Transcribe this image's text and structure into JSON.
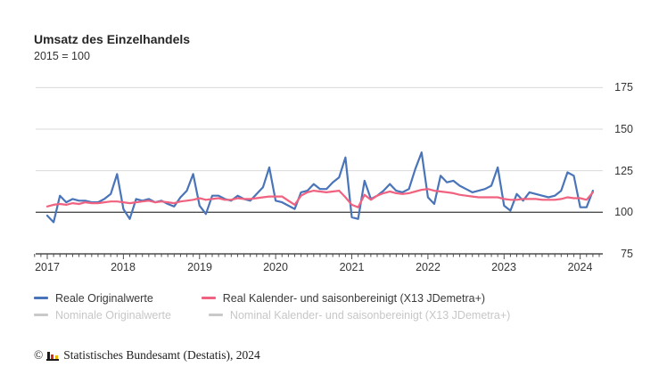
{
  "header": {
    "title": "Umsatz des Einzelhandels",
    "subtitle": "2015 = 100"
  },
  "y_axis": {
    "labels": [
      "175",
      "150",
      "125",
      "100",
      "75"
    ]
  },
  "x_axis": {
    "labels": [
      "2017",
      "2018",
      "2019",
      "2020",
      "2021",
      "2022",
      "2023",
      "2024"
    ]
  },
  "legend": {
    "active": [
      {
        "label": "Reale Originalwerte",
        "color": "#4a74b9"
      },
      {
        "label": "Real Kalender- und saisonbereinigt (X13 JDemetra+)",
        "color": "#f0627f"
      }
    ],
    "inactive": [
      {
        "label": "Nominale Originalwerte",
        "color": "#c9c9c9"
      },
      {
        "label": "Nominal Kalender- und saisonbereinigt (X13 JDemetra+)",
        "color": "#c9c9c9"
      }
    ]
  },
  "footer": {
    "copyright_symbol": "©",
    "logo_icon": "destatis-bar-chart-logo",
    "text": "Statistisches Bundesamt (Destatis), 2024"
  },
  "chart_data": {
    "type": "line",
    "title": "Umsatz des Einzelhandels",
    "subtitle": "2015 = 100",
    "x_unit": "month",
    "x_start": "2017-01",
    "x_end": "2024-03",
    "x_tick_labels": [
      "2017",
      "2018",
      "2019",
      "2020",
      "2021",
      "2022",
      "2023",
      "2024"
    ],
    "y_ticks": [
      75,
      100,
      125,
      150,
      175
    ],
    "ylim": [
      75,
      180
    ],
    "baseline_value": 100,
    "grid": "horizontal-light",
    "legend_position": "bottom-left",
    "series": [
      {
        "name": "Reale Originalwerte",
        "color": "#4a74b9",
        "values": [
          98,
          94,
          110,
          106,
          108,
          107,
          107,
          106,
          106,
          108,
          111,
          123,
          102,
          96,
          108,
          107,
          108,
          106,
          107,
          105,
          103.5,
          109,
          113,
          123,
          104,
          99,
          110,
          110,
          108,
          107,
          110,
          108,
          107,
          111,
          115,
          127,
          107,
          106,
          104,
          102,
          112,
          113,
          117,
          114,
          114,
          118,
          121,
          133,
          97,
          96,
          119,
          108,
          110,
          113,
          117,
          113,
          112,
          114,
          126,
          136,
          109,
          105,
          122,
          118,
          119,
          116,
          114,
          112,
          113,
          114,
          116,
          127,
          104,
          101,
          111,
          107,
          112,
          111,
          110,
          109,
          110,
          113,
          124,
          122,
          103,
          103,
          113
        ]
      },
      {
        "name": "Real Kalender- und saisonbereinigt (X13 JDemetra+)",
        "color": "#f0627f",
        "values": [
          103.5,
          104.5,
          105,
          104.5,
          105.5,
          105,
          106,
          105.5,
          105.5,
          106,
          106.5,
          106.5,
          106,
          105.5,
          106,
          106.5,
          107,
          106,
          106.5,
          106,
          105.5,
          106.5,
          107,
          107.5,
          108.5,
          107.5,
          108,
          108.5,
          107.5,
          107.5,
          108.5,
          108,
          108,
          108.5,
          109,
          109.5,
          109.5,
          109.5,
          107,
          104.5,
          110,
          112,
          113,
          112.5,
          112,
          112.5,
          113,
          109,
          104.5,
          103,
          110.5,
          107.5,
          110,
          111.5,
          112.5,
          111.5,
          111,
          111.5,
          112.5,
          113.5,
          114,
          113,
          112.5,
          112,
          111.5,
          110.5,
          110,
          109.5,
          109,
          109,
          109,
          109,
          108,
          107.5,
          107.5,
          108,
          108,
          108,
          107.5,
          107.5,
          107.5,
          108,
          109,
          108.5,
          108.5,
          107.5,
          112
        ]
      }
    ],
    "hidden_series": [
      {
        "name": "Nominale Originalwerte"
      },
      {
        "name": "Nominal Kalender- und saisonbereinigt (X13 JDemetra+)"
      }
    ]
  }
}
